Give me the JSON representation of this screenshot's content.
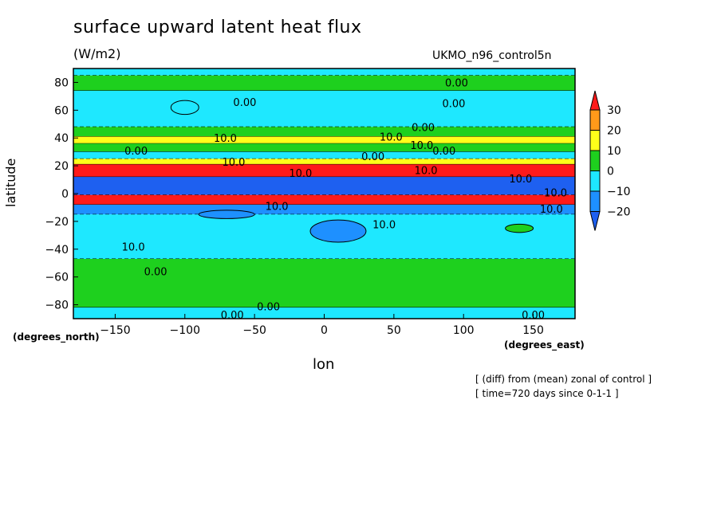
{
  "chart_data": {
    "type": "heatmap",
    "title": "surface upward latent heat flux",
    "units": "(W/m2)",
    "run_name": "UKMO_n96_control5n",
    "xlabel": "lon",
    "ylabel": "latitude",
    "x_units": "(degrees_east)",
    "y_units": "(degrees_north)",
    "notes": [
      "[ (diff) from (mean) zonal of control ]",
      "[ time=720 days since 0-1-1 ]"
    ],
    "xlim": [
      -180,
      180
    ],
    "ylim": [
      -90,
      90
    ],
    "x_ticks": [
      -150,
      -100,
      -50,
      0,
      50,
      100,
      150
    ],
    "y_ticks": [
      80,
      60,
      40,
      20,
      0,
      -20,
      -40,
      -60,
      -80
    ],
    "colorbar": {
      "levels": [
        30,
        20,
        10,
        0,
        -10,
        -20
      ],
      "colors": [
        "#ff1a1a",
        "#ff9a1a",
        "#ffff1a",
        "#1ed01e",
        "#1ee8ff",
        "#1e90ff",
        "#1e60f0"
      ]
    },
    "zonal_bands": [
      {
        "lat_from": 90,
        "lat_to": 85,
        "value": -5
      },
      {
        "lat_from": 85,
        "lat_to": 74,
        "value": 5
      },
      {
        "lat_from": 74,
        "lat_to": 48,
        "value": -5
      },
      {
        "lat_from": 48,
        "lat_to": 41,
        "value": 5
      },
      {
        "lat_from": 41,
        "lat_to": 36,
        "value": 15
      },
      {
        "lat_from": 36,
        "lat_to": 30,
        "value": 5
      },
      {
        "lat_from": 30,
        "lat_to": 25,
        "value": -5
      },
      {
        "lat_from": 25,
        "lat_to": 21,
        "value": 15
      },
      {
        "lat_from": 21,
        "lat_to": 12,
        "value": 35
      },
      {
        "lat_from": 12,
        "lat_to": -1,
        "value": -25
      },
      {
        "lat_from": -1,
        "lat_to": -8,
        "value": 35
      },
      {
        "lat_from": -8,
        "lat_to": -15,
        "value": -15
      },
      {
        "lat_from": -15,
        "lat_to": -47,
        "value": -5
      },
      {
        "lat_from": -47,
        "lat_to": -82,
        "value": 5
      },
      {
        "lat_from": -82,
        "lat_to": -90,
        "value": -5
      }
    ],
    "patches": [
      {
        "lon": -100,
        "lat": 62,
        "dlon": 10,
        "dlat": 5,
        "value": -5
      },
      {
        "lon": 140,
        "lat": -25,
        "dlon": 10,
        "dlat": 3,
        "value": 5
      },
      {
        "lon": -70,
        "lat": -15,
        "dlon": 20,
        "dlat": 3,
        "value": -15
      },
      {
        "lon": 10,
        "lat": -27,
        "dlon": 20,
        "dlat": 8,
        "value": -15
      }
    ],
    "contour_labels": [
      {
        "text": "0.00",
        "lon": 95,
        "lat": 80
      },
      {
        "text": "0.00",
        "lon": -57,
        "lat": 66
      },
      {
        "text": "0.00",
        "lon": 93,
        "lat": 65
      },
      {
        "text": "0.00",
        "lon": 71,
        "lat": 48
      },
      {
        "text": "10.0",
        "lon": -71,
        "lat": 40
      },
      {
        "text": "10.0",
        "lon": 48,
        "lat": 41
      },
      {
        "text": "10.0",
        "lon": 70,
        "lat": 35
      },
      {
        "text": "0.00",
        "lon": -135,
        "lat": 31
      },
      {
        "text": "0.00",
        "lon": 86,
        "lat": 31
      },
      {
        "text": "0.00",
        "lon": 35,
        "lat": 27
      },
      {
        "text": "10.0",
        "lon": -65,
        "lat": 23
      },
      {
        "text": "10.0",
        "lon": 73,
        "lat": 17
      },
      {
        "text": "10.0",
        "lon": -17,
        "lat": 15
      },
      {
        "text": "10.0",
        "lon": 141,
        "lat": 11
      },
      {
        "text": "10.0",
        "lon": 166,
        "lat": 1
      },
      {
        "text": "10.0",
        "lon": -34,
        "lat": -9
      },
      {
        "text": "10.0",
        "lon": 163,
        "lat": -11
      },
      {
        "text": "10.0",
        "lon": 43,
        "lat": -22
      },
      {
        "text": "10.0",
        "lon": -137,
        "lat": -38
      },
      {
        "text": "0.00",
        "lon": -121,
        "lat": -56
      },
      {
        "text": "0.00",
        "lon": -66,
        "lat": -87
      },
      {
        "text": "0.00",
        "lon": -40,
        "lat": -81
      },
      {
        "text": "0.00",
        "lon": 150,
        "lat": -87
      }
    ]
  }
}
